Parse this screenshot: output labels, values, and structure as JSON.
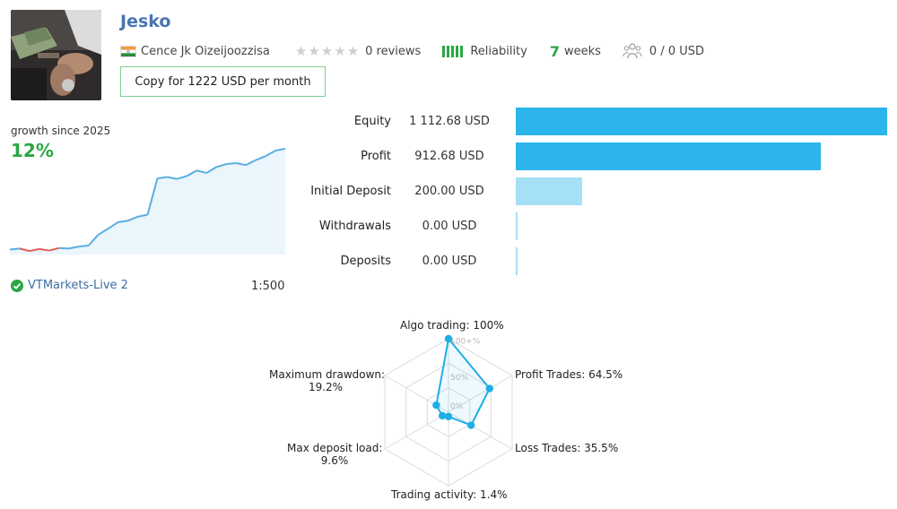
{
  "profile": {
    "name": "Jesko",
    "country": "Cence Jk Oizeijoozzisa",
    "reviews": "0 reviews",
    "reliability_label": "Reliability",
    "weeks_value": "7",
    "weeks_label": "weeks",
    "subscribers": "0 / 0 USD",
    "copy_button": "Copy for 1222 USD per month",
    "star_rating": 0,
    "reliability_level": 1.0
  },
  "growth": {
    "label": "growth since 2025",
    "value": "12%",
    "broker": "VTMarkets-Live 2",
    "leverage": "1:500",
    "line_color": "#5aaee0",
    "neg_color": "#e0605a",
    "points": [
      0.0,
      0.2,
      -0.3,
      0.1,
      -0.2,
      0.3,
      0.2,
      0.6,
      0.8,
      3.0,
      4.2,
      5.5,
      5.8,
      6.6,
      7.0,
      14.3,
      14.6,
      14.2,
      14.8,
      15.9,
      15.4,
      16.6,
      17.2,
      17.4,
      17.0,
      18.0,
      18.8,
      19.9,
      20.3
    ]
  },
  "stats": [
    {
      "label": "Equity",
      "value": "1 112.68 USD",
      "amount": 1112.68,
      "color": "#2bb5ea"
    },
    {
      "label": "Profit",
      "value": "912.68 USD",
      "amount": 912.68,
      "color": "#2bb5ea"
    },
    {
      "label": "Initial Deposit",
      "value": "200.00 USD",
      "amount": 200.0,
      "color": "#a6e0f6"
    },
    {
      "label": "Withdrawals",
      "value": "0.00 USD",
      "amount": 0,
      "color": "#a6e0f6"
    },
    {
      "label": "Deposits",
      "value": "0.00 USD",
      "amount": 0,
      "color": "#a6e0f6"
    }
  ],
  "radar": {
    "scale_labels": [
      "100+%",
      "50%",
      "0%"
    ],
    "axes": [
      {
        "label": "Algo trading: 100%",
        "label2": "",
        "value": 100
      },
      {
        "label": "Profit Trades: 64.5%",
        "label2": "",
        "value": 64.5
      },
      {
        "label": "Loss Trades: 35.5%",
        "label2": "",
        "value": 35.5
      },
      {
        "label": "Trading activity: 1.4%",
        "label2": "",
        "value": 1.4
      },
      {
        "label": "Max deposit load:",
        "label2": "9.6%",
        "value": 9.6
      },
      {
        "label": "Maximum drawdown:",
        "label2": "19.2%",
        "value": 19.2
      }
    ],
    "color": "#1eaee8"
  }
}
